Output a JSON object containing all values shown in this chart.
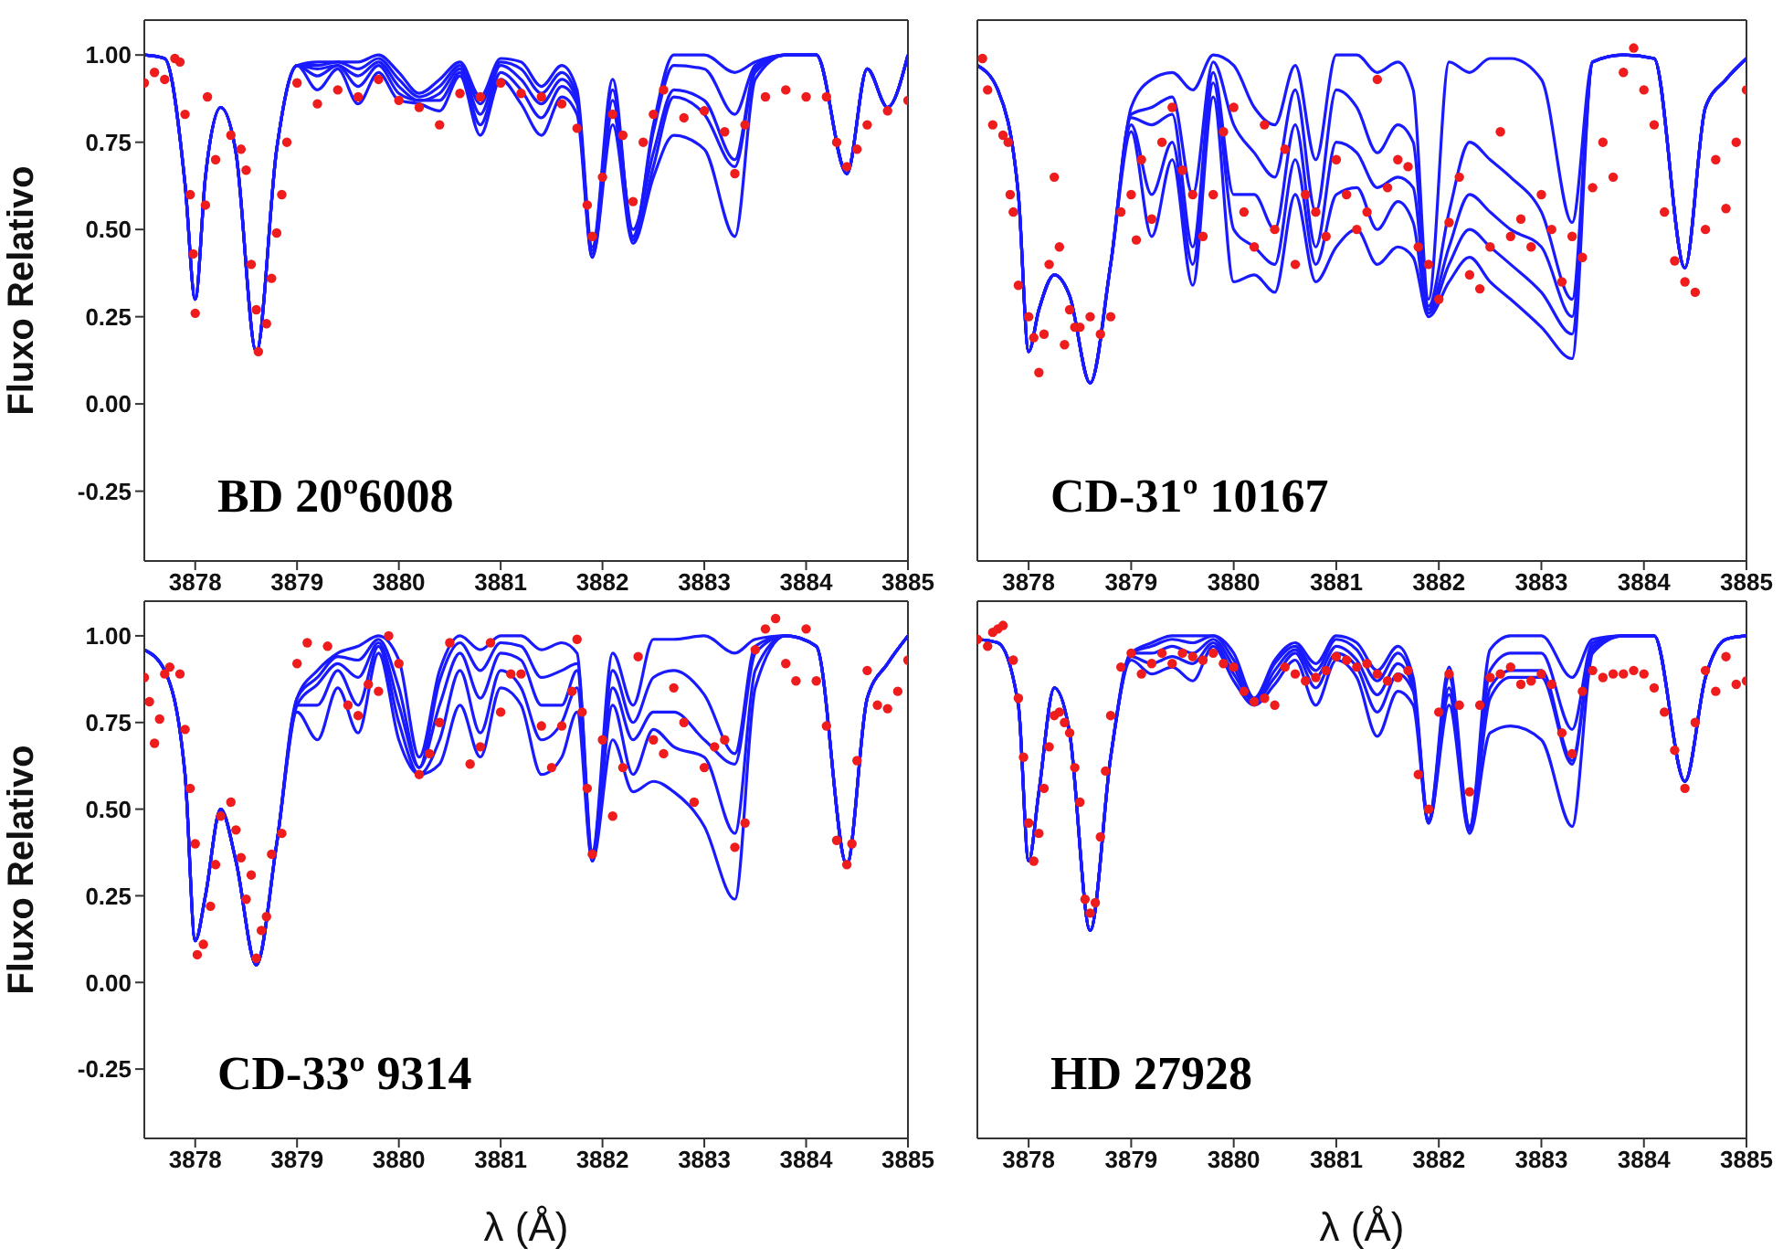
{
  "chart_data": [
    {
      "type": "line",
      "ylabel": "Fluxo Relativo",
      "annotations": [
        "BD 20º6008"
      ],
      "marker": "none",
      "xlim": [
        3877.5,
        3885
      ],
      "xticks": [
        3878,
        3879,
        3880,
        3881,
        3882,
        3883,
        3884,
        3885
      ],
      "ylim": [
        -0.45,
        1.1
      ],
      "yticks": [
        {
          "value": -0.25,
          "label": "-0.25"
        },
        {
          "value": 0,
          "label": "0.00"
        },
        {
          "value": 0.25,
          "label": "0.25"
        },
        {
          "value": 0.5,
          "label": "0.50"
        },
        {
          "value": 0.75,
          "label": "0.75"
        },
        {
          "value": 1,
          "label": "1.00"
        }
      ],
      "x": [
        3877.5,
        3877.7,
        3877.9,
        3878.0,
        3878.1,
        3878.25,
        3878.4,
        3878.6,
        3878.8,
        3879.0,
        3879.2,
        3879.4,
        3879.6,
        3879.8,
        3880.0,
        3880.2,
        3880.4,
        3880.6,
        3880.8,
        3881.0,
        3881.2,
        3881.4,
        3881.6,
        3881.75,
        3881.9,
        3882.1,
        3882.3,
        3882.5,
        3882.7,
        3883.0,
        3883.3,
        3883.5,
        3883.8,
        3884.1,
        3884.4,
        3884.6,
        3884.8,
        3885.0
      ],
      "series": [
        {
          "color": "#1a1aff",
          "values": [
            1.0,
            0.99,
            0.63,
            0.3,
            0.65,
            0.85,
            0.72,
            0.15,
            0.73,
            0.97,
            0.98,
            0.98,
            0.98,
            1.0,
            0.95,
            0.89,
            0.93,
            0.98,
            0.88,
            0.99,
            0.98,
            0.91,
            0.97,
            0.9,
            0.45,
            0.93,
            0.47,
            0.8,
            1.0,
            1.0,
            0.95,
            0.98,
            1.0,
            1.0,
            0.66,
            0.96,
            0.85,
            1.0
          ]
        },
        {
          "color": "#1a1aff",
          "values": [
            1.0,
            0.99,
            0.63,
            0.3,
            0.65,
            0.85,
            0.72,
            0.15,
            0.73,
            0.97,
            0.97,
            0.98,
            0.96,
            0.99,
            0.93,
            0.88,
            0.91,
            0.97,
            0.86,
            0.98,
            0.96,
            0.89,
            0.95,
            0.88,
            0.44,
            0.9,
            0.48,
            0.78,
            0.97,
            0.96,
            0.83,
            0.97,
            1.0,
            1.0,
            0.66,
            0.96,
            0.85,
            1.0
          ]
        },
        {
          "color": "#1a1aff",
          "values": [
            1.0,
            0.99,
            0.63,
            0.3,
            0.65,
            0.85,
            0.72,
            0.15,
            0.73,
            0.97,
            0.96,
            0.97,
            0.94,
            0.98,
            0.91,
            0.87,
            0.89,
            0.96,
            0.83,
            0.97,
            0.93,
            0.86,
            0.93,
            0.87,
            0.43,
            0.87,
            0.5,
            0.72,
            0.9,
            0.87,
            0.7,
            0.96,
            1.0,
            1.0,
            0.66,
            0.96,
            0.85,
            1.0
          ]
        },
        {
          "color": "#1a1aff",
          "values": [
            1.0,
            0.99,
            0.63,
            0.3,
            0.65,
            0.85,
            0.72,
            0.15,
            0.73,
            0.97,
            0.94,
            0.97,
            0.91,
            0.97,
            0.89,
            0.87,
            0.87,
            0.95,
            0.8,
            0.95,
            0.9,
            0.82,
            0.91,
            0.86,
            0.42,
            0.84,
            0.47,
            0.68,
            0.88,
            0.83,
            0.68,
            0.95,
            1.0,
            1.0,
            0.66,
            0.96,
            0.85,
            1.0
          ]
        },
        {
          "color": "#1a1aff",
          "values": [
            1.0,
            0.99,
            0.63,
            0.3,
            0.65,
            0.85,
            0.72,
            0.15,
            0.73,
            0.97,
            0.9,
            0.96,
            0.86,
            0.95,
            0.87,
            0.86,
            0.84,
            0.94,
            0.77,
            0.93,
            0.86,
            0.77,
            0.88,
            0.83,
            0.42,
            0.8,
            0.46,
            0.65,
            0.77,
            0.73,
            0.48,
            0.93,
            1.0,
            1.0,
            0.66,
            0.96,
            0.85,
            1.0
          ]
        },
        {
          "type": "scatter",
          "marker": "circle",
          "color": "#ee1c1c",
          "x": [
            3877.5,
            3877.6,
            3877.7,
            3877.8,
            3877.85,
            3877.9,
            3877.95,
            3877.98,
            3878.0,
            3878.1,
            3878.12,
            3878.2,
            3878.35,
            3878.45,
            3878.5,
            3878.55,
            3878.6,
            3878.62,
            3878.7,
            3878.75,
            3878.8,
            3878.85,
            3878.9,
            3879.0,
            3879.2,
            3879.4,
            3879.6,
            3879.8,
            3880.0,
            3880.2,
            3880.4,
            3880.6,
            3880.8,
            3881.0,
            3881.2,
            3881.4,
            3881.6,
            3881.75,
            3881.85,
            3881.9,
            3882.0,
            3882.1,
            3882.2,
            3882.3,
            3882.4,
            3882.5,
            3882.6,
            3882.8,
            3883.0,
            3883.2,
            3883.3,
            3883.4,
            3883.6,
            3883.8,
            3884.0,
            3884.2,
            3884.3,
            3884.4,
            3884.5,
            3884.6,
            3884.8,
            3885.0
          ],
          "values": [
            0.92,
            0.95,
            0.93,
            0.99,
            0.98,
            0.83,
            0.6,
            0.43,
            0.26,
            0.57,
            0.88,
            0.7,
            0.77,
            0.73,
            0.67,
            0.4,
            0.27,
            0.15,
            0.23,
            0.36,
            0.49,
            0.6,
            0.75,
            0.92,
            0.86,
            0.9,
            0.88,
            0.93,
            0.87,
            0.85,
            0.8,
            0.89,
            0.88,
            0.92,
            0.89,
            0.88,
            0.86,
            0.79,
            0.57,
            0.48,
            0.65,
            0.83,
            0.77,
            0.58,
            0.75,
            0.83,
            0.9,
            0.82,
            0.84,
            0.78,
            0.66,
            0.8,
            0.88,
            0.9,
            0.88,
            0.88,
            0.75,
            0.68,
            0.73,
            0.8,
            0.84,
            0.87
          ]
        }
      ]
    },
    {
      "type": "line",
      "annotations": [
        "CD-31º 10167"
      ],
      "tick_labels": "x",
      "marker": "none",
      "xlim": [
        3877.5,
        3885
      ],
      "xticks": [
        3878,
        3879,
        3880,
        3881,
        3882,
        3883,
        3884,
        3885
      ],
      "ylim": [
        -0.45,
        1.1
      ],
      "yticks": [
        {
          "value": -0.25,
          "label": null
        },
        {
          "value": 0,
          "label": null
        },
        {
          "value": 0.25,
          "label": null
        },
        {
          "value": 0.5,
          "label": null
        },
        {
          "value": 0.75,
          "label": null
        },
        {
          "value": 1,
          "label": null
        }
      ],
      "x": [
        3877.5,
        3877.7,
        3877.9,
        3878.0,
        3878.1,
        3878.25,
        3878.4,
        3878.6,
        3878.8,
        3879.0,
        3879.2,
        3879.4,
        3879.6,
        3879.8,
        3880.0,
        3880.2,
        3880.4,
        3880.6,
        3880.8,
        3881.0,
        3881.2,
        3881.4,
        3881.6,
        3881.75,
        3881.9,
        3882.1,
        3882.3,
        3882.5,
        3882.7,
        3883.0,
        3883.3,
        3883.5,
        3883.8,
        3884.1,
        3884.4,
        3884.6,
        3884.8,
        3885.0
      ],
      "series": [
        {
          "color": "#1a1aff",
          "values": [
            0.97,
            0.9,
            0.6,
            0.15,
            0.27,
            0.37,
            0.31,
            0.06,
            0.4,
            0.85,
            0.93,
            0.95,
            0.9,
            1.0,
            0.97,
            0.85,
            0.8,
            0.97,
            0.7,
            1.0,
            1.0,
            0.95,
            0.98,
            0.9,
            0.3,
            0.98,
            0.95,
            0.99,
            0.99,
            0.93,
            0.52,
            0.98,
            1.0,
            0.99,
            0.39,
            0.85,
            0.93,
            0.99
          ]
        },
        {
          "color": "#1a1aff",
          "values": [
            0.97,
            0.9,
            0.6,
            0.15,
            0.27,
            0.37,
            0.31,
            0.06,
            0.4,
            0.83,
            0.85,
            0.88,
            0.6,
            0.98,
            0.8,
            0.72,
            0.65,
            0.9,
            0.55,
            0.9,
            0.85,
            0.72,
            0.8,
            0.75,
            0.28,
            0.55,
            0.75,
            0.7,
            0.65,
            0.55,
            0.3,
            0.98,
            1.0,
            0.99,
            0.39,
            0.85,
            0.93,
            0.99
          ]
        },
        {
          "color": "#1a1aff",
          "values": [
            0.97,
            0.9,
            0.6,
            0.15,
            0.27,
            0.37,
            0.31,
            0.06,
            0.4,
            0.82,
            0.8,
            0.83,
            0.45,
            0.95,
            0.6,
            0.6,
            0.5,
            0.8,
            0.45,
            0.75,
            0.72,
            0.62,
            0.65,
            0.62,
            0.27,
            0.45,
            0.6,
            0.55,
            0.5,
            0.45,
            0.25,
            0.98,
            1.0,
            0.99,
            0.39,
            0.85,
            0.93,
            0.99
          ]
        },
        {
          "color": "#1a1aff",
          "values": [
            0.97,
            0.9,
            0.6,
            0.15,
            0.27,
            0.37,
            0.31,
            0.06,
            0.4,
            0.8,
            0.6,
            0.75,
            0.4,
            0.92,
            0.5,
            0.45,
            0.4,
            0.7,
            0.4,
            0.6,
            0.62,
            0.5,
            0.58,
            0.52,
            0.26,
            0.4,
            0.5,
            0.45,
            0.4,
            0.32,
            0.2,
            0.98,
            1.0,
            0.99,
            0.39,
            0.85,
            0.93,
            0.99
          ]
        },
        {
          "color": "#1a1aff",
          "values": [
            0.97,
            0.9,
            0.6,
            0.15,
            0.27,
            0.37,
            0.31,
            0.06,
            0.4,
            0.78,
            0.48,
            0.7,
            0.34,
            0.88,
            0.35,
            0.37,
            0.32,
            0.6,
            0.35,
            0.45,
            0.5,
            0.4,
            0.45,
            0.42,
            0.25,
            0.35,
            0.42,
            0.35,
            0.3,
            0.22,
            0.13,
            0.98,
            1.0,
            0.99,
            0.39,
            0.85,
            0.93,
            0.99
          ]
        },
        {
          "type": "scatter",
          "marker": "circle",
          "color": "#ee1c1c",
          "x": [
            3877.55,
            3877.6,
            3877.65,
            3877.75,
            3877.8,
            3877.82,
            3877.85,
            3877.9,
            3878.0,
            3878.05,
            3878.1,
            3878.15,
            3878.2,
            3878.25,
            3878.3,
            3878.35,
            3878.4,
            3878.45,
            3878.5,
            3878.6,
            3878.7,
            3878.8,
            3878.9,
            3879.0,
            3879.05,
            3879.1,
            3879.2,
            3879.3,
            3879.4,
            3879.5,
            3879.6,
            3879.7,
            3879.8,
            3879.9,
            3880.0,
            3880.1,
            3880.2,
            3880.3,
            3880.4,
            3880.5,
            3880.6,
            3880.7,
            3880.8,
            3880.9,
            3881.0,
            3881.1,
            3881.2,
            3881.3,
            3881.4,
            3881.5,
            3881.6,
            3881.7,
            3881.8,
            3881.9,
            3882.0,
            3882.1,
            3882.2,
            3882.3,
            3882.4,
            3882.5,
            3882.6,
            3882.7,
            3882.8,
            3882.9,
            3883.0,
            3883.1,
            3883.2,
            3883.3,
            3883.4,
            3883.5,
            3883.6,
            3883.7,
            3883.8,
            3883.9,
            3884.0,
            3884.1,
            3884.2,
            3884.3,
            3884.4,
            3884.5,
            3884.6,
            3884.7,
            3884.8,
            3884.9,
            3885.0
          ],
          "values": [
            0.99,
            0.9,
            0.8,
            0.77,
            0.75,
            0.6,
            0.55,
            0.34,
            0.25,
            0.19,
            0.09,
            0.2,
            0.4,
            0.65,
            0.45,
            0.17,
            0.27,
            0.22,
            0.22,
            0.25,
            0.2,
            0.25,
            0.55,
            0.6,
            0.47,
            0.7,
            0.53,
            0.75,
            0.85,
            0.67,
            0.6,
            0.48,
            0.6,
            0.78,
            0.85,
            0.55,
            0.45,
            0.8,
            0.5,
            0.73,
            0.4,
            0.6,
            0.55,
            0.48,
            0.7,
            0.6,
            0.5,
            0.55,
            0.93,
            0.62,
            0.7,
            0.68,
            0.45,
            0.4,
            0.3,
            0.52,
            0.65,
            0.37,
            0.33,
            0.45,
            0.78,
            0.48,
            0.53,
            0.45,
            0.6,
            0.5,
            0.35,
            0.48,
            0.42,
            0.62,
            0.75,
            0.65,
            0.95,
            1.02,
            0.9,
            0.8,
            0.55,
            0.41,
            0.35,
            0.32,
            0.5,
            0.7,
            0.56,
            0.75,
            0.9
          ]
        }
      ]
    },
    {
      "type": "line",
      "ylabel": "Fluxo Relativo",
      "xlabel": "λ (Å)",
      "annotations": [
        "CD-33º 9314"
      ],
      "marker": "none",
      "xlim": [
        3877.5,
        3885
      ],
      "xticks": [
        3878,
        3879,
        3880,
        3881,
        3882,
        3883,
        3884,
        3885
      ],
      "ylim": [
        -0.45,
        1.1
      ],
      "yticks": [
        {
          "value": -0.25,
          "label": "-0.25"
        },
        {
          "value": 0,
          "label": "0.00"
        },
        {
          "value": 0.25,
          "label": "0.25"
        },
        {
          "value": 0.5,
          "label": "0.50"
        },
        {
          "value": 0.75,
          "label": "0.75"
        },
        {
          "value": 1,
          "label": "1.00"
        }
      ],
      "x": [
        3877.5,
        3877.7,
        3877.9,
        3878.0,
        3878.1,
        3878.25,
        3878.4,
        3878.6,
        3878.8,
        3879.0,
        3879.2,
        3879.4,
        3879.6,
        3879.8,
        3880.0,
        3880.2,
        3880.4,
        3880.6,
        3880.8,
        3881.0,
        3881.2,
        3881.4,
        3881.6,
        3881.75,
        3881.9,
        3882.1,
        3882.3,
        3882.5,
        3882.7,
        3883.0,
        3883.3,
        3883.5,
        3883.8,
        3884.1,
        3884.4,
        3884.6,
        3884.8,
        3885.0
      ],
      "series": [
        {
          "color": "#1a1aff",
          "values": [
            0.96,
            0.9,
            0.6,
            0.12,
            0.25,
            0.5,
            0.35,
            0.05,
            0.4,
            0.82,
            0.9,
            0.95,
            0.97,
            1.0,
            0.93,
            0.65,
            0.9,
            1.0,
            0.96,
            1.0,
            1.0,
            0.96,
            0.98,
            0.95,
            0.38,
            0.95,
            0.8,
            0.99,
            0.99,
            1.0,
            0.95,
            0.99,
            1.0,
            0.97,
            0.34,
            0.82,
            0.92,
            1.0
          ]
        },
        {
          "color": "#1a1aff",
          "values": [
            0.96,
            0.9,
            0.6,
            0.12,
            0.25,
            0.5,
            0.35,
            0.05,
            0.4,
            0.82,
            0.88,
            0.94,
            0.93,
            0.99,
            0.85,
            0.62,
            0.87,
            0.98,
            0.9,
            0.98,
            0.97,
            0.88,
            0.9,
            0.92,
            0.37,
            0.9,
            0.75,
            0.88,
            0.9,
            0.83,
            0.66,
            0.97,
            1.0,
            0.97,
            0.34,
            0.82,
            0.92,
            1.0
          ]
        },
        {
          "color": "#1a1aff",
          "values": [
            0.96,
            0.9,
            0.6,
            0.12,
            0.25,
            0.5,
            0.35,
            0.05,
            0.4,
            0.8,
            0.86,
            0.92,
            0.88,
            0.98,
            0.8,
            0.62,
            0.8,
            0.95,
            0.82,
            0.95,
            0.93,
            0.8,
            0.8,
            0.9,
            0.36,
            0.85,
            0.7,
            0.78,
            0.78,
            0.7,
            0.63,
            0.95,
            1.0,
            0.97,
            0.34,
            0.82,
            0.92,
            1.0
          ]
        },
        {
          "color": "#1a1aff",
          "values": [
            0.96,
            0.9,
            0.6,
            0.12,
            0.25,
            0.5,
            0.35,
            0.05,
            0.4,
            0.8,
            0.8,
            0.9,
            0.8,
            0.97,
            0.75,
            0.6,
            0.7,
            0.9,
            0.72,
            0.9,
            0.85,
            0.7,
            0.75,
            0.85,
            0.35,
            0.8,
            0.6,
            0.73,
            0.68,
            0.65,
            0.43,
            0.9,
            1.0,
            0.97,
            0.34,
            0.82,
            0.92,
            1.0
          ]
        },
        {
          "color": "#1a1aff",
          "values": [
            0.96,
            0.9,
            0.6,
            0.12,
            0.25,
            0.5,
            0.35,
            0.05,
            0.4,
            0.78,
            0.7,
            0.85,
            0.72,
            0.95,
            0.7,
            0.6,
            0.63,
            0.8,
            0.65,
            0.85,
            0.8,
            0.6,
            0.65,
            0.78,
            0.35,
            0.7,
            0.55,
            0.58,
            0.55,
            0.45,
            0.24,
            0.85,
            1.0,
            0.97,
            0.34,
            0.82,
            0.92,
            1.0
          ]
        },
        {
          "type": "scatter",
          "marker": "circle",
          "color": "#ee1c1c",
          "x": [
            3877.5,
            3877.55,
            3877.6,
            3877.65,
            3877.7,
            3877.75,
            3877.85,
            3877.9,
            3877.95,
            3878.0,
            3878.02,
            3878.08,
            3878.15,
            3878.2,
            3878.25,
            3878.35,
            3878.4,
            3878.45,
            3878.5,
            3878.55,
            3878.6,
            3878.65,
            3878.7,
            3878.75,
            3878.85,
            3879.0,
            3879.1,
            3879.3,
            3879.5,
            3879.6,
            3879.7,
            3879.8,
            3879.9,
            3880.0,
            3880.2,
            3880.3,
            3880.4,
            3880.5,
            3880.7,
            3880.8,
            3880.9,
            3881.0,
            3881.1,
            3881.2,
            3881.4,
            3881.5,
            3881.6,
            3881.7,
            3881.75,
            3881.8,
            3881.85,
            3881.9,
            3882.0,
            3882.1,
            3882.2,
            3882.35,
            3882.5,
            3882.6,
            3882.7,
            3882.8,
            3882.9,
            3883.0,
            3883.1,
            3883.2,
            3883.3,
            3883.4,
            3883.5,
            3883.6,
            3883.7,
            3883.8,
            3883.9,
            3884.0,
            3884.1,
            3884.2,
            3884.3,
            3884.4,
            3884.45,
            3884.5,
            3884.6,
            3884.7,
            3884.8,
            3884.9,
            3885.0
          ],
          "values": [
            0.88,
            0.81,
            0.69,
            0.76,
            0.89,
            0.91,
            0.89,
            0.73,
            0.56,
            0.4,
            0.08,
            0.11,
            0.22,
            0.34,
            0.48,
            0.52,
            0.44,
            0.36,
            0.24,
            0.31,
            0.07,
            0.15,
            0.19,
            0.37,
            0.43,
            0.92,
            0.98,
            0.97,
            0.8,
            0.77,
            0.86,
            0.84,
            1.0,
            0.92,
            0.6,
            0.66,
            0.75,
            0.98,
            0.63,
            0.68,
            0.98,
            0.78,
            0.89,
            0.89,
            0.74,
            0.62,
            0.74,
            0.84,
            0.99,
            0.78,
            0.56,
            0.37,
            0.7,
            0.48,
            0.62,
            0.94,
            0.7,
            0.66,
            0.85,
            0.75,
            0.52,
            0.62,
            0.68,
            0.7,
            0.39,
            0.46,
            0.96,
            1.02,
            1.05,
            0.92,
            0.87,
            1.02,
            0.87,
            0.74,
            0.41,
            0.34,
            0.4,
            0.64,
            0.9,
            0.8,
            0.79,
            0.84,
            0.93
          ]
        }
      ]
    },
    {
      "type": "line",
      "xlabel": "λ (Å)",
      "annotations": [
        "HD 27928"
      ],
      "tick_labels": "x",
      "marker": "none",
      "xlim": [
        3877.5,
        3885
      ],
      "xticks": [
        3878,
        3879,
        3880,
        3881,
        3882,
        3883,
        3884,
        3885
      ],
      "ylim": [
        -0.45,
        1.1
      ],
      "yticks": [
        {
          "value": -0.25,
          "label": null
        },
        {
          "value": 0,
          "label": null
        },
        {
          "value": 0.25,
          "label": null
        },
        {
          "value": 0.5,
          "label": null
        },
        {
          "value": 0.75,
          "label": null
        },
        {
          "value": 1,
          "label": null
        }
      ],
      "x": [
        3877.5,
        3877.7,
        3877.9,
        3878.0,
        3878.1,
        3878.25,
        3878.4,
        3878.6,
        3878.8,
        3879.0,
        3879.2,
        3879.4,
        3879.6,
        3879.8,
        3880.0,
        3880.2,
        3880.4,
        3880.6,
        3880.8,
        3881.0,
        3881.2,
        3881.4,
        3881.6,
        3881.75,
        3881.9,
        3882.1,
        3882.3,
        3882.5,
        3882.7,
        3883.0,
        3883.3,
        3883.5,
        3883.8,
        3884.1,
        3884.4,
        3884.6,
        3884.8,
        3885.0
      ],
      "series": [
        {
          "color": "#1a1aff",
          "values": [
            0.99,
            0.98,
            0.8,
            0.35,
            0.55,
            0.85,
            0.72,
            0.15,
            0.65,
            0.95,
            0.98,
            1.0,
            1.0,
            1.0,
            0.95,
            0.82,
            0.93,
            0.98,
            0.92,
            1.0,
            0.98,
            0.9,
            0.97,
            0.88,
            0.47,
            0.91,
            0.45,
            0.96,
            1.0,
            1.0,
            0.88,
            0.99,
            1.0,
            1.0,
            0.58,
            0.88,
            0.99,
            1.0
          ]
        },
        {
          "color": "#1a1aff",
          "values": [
            0.99,
            0.98,
            0.8,
            0.35,
            0.55,
            0.85,
            0.72,
            0.15,
            0.65,
            0.95,
            0.97,
            0.99,
            0.98,
            1.0,
            0.93,
            0.82,
            0.92,
            0.97,
            0.9,
            0.99,
            0.96,
            0.87,
            0.95,
            0.86,
            0.47,
            0.88,
            0.45,
            0.9,
            0.95,
            0.95,
            0.73,
            0.98,
            1.0,
            1.0,
            0.58,
            0.88,
            0.99,
            1.0
          ]
        },
        {
          "color": "#1a1aff",
          "values": [
            0.99,
            0.98,
            0.8,
            0.35,
            0.55,
            0.85,
            0.72,
            0.15,
            0.65,
            0.95,
            0.95,
            0.97,
            0.95,
            0.99,
            0.91,
            0.81,
            0.9,
            0.96,
            0.88,
            0.97,
            0.93,
            0.83,
            0.92,
            0.85,
            0.46,
            0.85,
            0.44,
            0.85,
            0.9,
            0.9,
            0.64,
            0.97,
            1.0,
            1.0,
            0.58,
            0.88,
            0.99,
            1.0
          ]
        },
        {
          "color": "#1a1aff",
          "values": [
            0.99,
            0.98,
            0.8,
            0.35,
            0.55,
            0.85,
            0.72,
            0.15,
            0.65,
            0.94,
            0.92,
            0.94,
            0.92,
            0.98,
            0.89,
            0.81,
            0.88,
            0.95,
            0.85,
            0.95,
            0.91,
            0.78,
            0.89,
            0.84,
            0.46,
            0.83,
            0.44,
            0.82,
            0.88,
            0.88,
            0.63,
            0.96,
            1.0,
            1.0,
            0.58,
            0.88,
            0.99,
            1.0
          ]
        },
        {
          "color": "#1a1aff",
          "values": [
            0.99,
            0.98,
            0.8,
            0.35,
            0.55,
            0.85,
            0.72,
            0.15,
            0.65,
            0.93,
            0.89,
            0.91,
            0.87,
            0.97,
            0.87,
            0.8,
            0.86,
            0.93,
            0.8,
            0.93,
            0.88,
            0.71,
            0.84,
            0.8,
            0.46,
            0.8,
            0.43,
            0.72,
            0.74,
            0.7,
            0.45,
            0.95,
            1.0,
            1.0,
            0.58,
            0.88,
            0.99,
            1.0
          ]
        },
        {
          "type": "scatter",
          "marker": "circle",
          "color": "#ee1c1c",
          "x": [
            3877.5,
            3877.6,
            3877.65,
            3877.7,
            3877.75,
            3877.85,
            3877.9,
            3877.95,
            3878.0,
            3878.05,
            3878.1,
            3878.15,
            3878.2,
            3878.25,
            3878.3,
            3878.35,
            3878.4,
            3878.45,
            3878.5,
            3878.55,
            3878.6,
            3878.65,
            3878.7,
            3878.75,
            3878.8,
            3878.9,
            3879.0,
            3879.1,
            3879.2,
            3879.3,
            3879.4,
            3879.5,
            3879.6,
            3879.7,
            3879.8,
            3879.9,
            3880.0,
            3880.1,
            3880.2,
            3880.3,
            3880.4,
            3880.5,
            3880.6,
            3880.7,
            3880.8,
            3880.9,
            3881.0,
            3881.1,
            3881.2,
            3881.3,
            3881.4,
            3881.5,
            3881.6,
            3881.7,
            3881.8,
            3881.9,
            3882.0,
            3882.1,
            3882.2,
            3882.3,
            3882.4,
            3882.5,
            3882.6,
            3882.7,
            3882.8,
            3882.9,
            3883.0,
            3883.1,
            3883.2,
            3883.3,
            3883.4,
            3883.5,
            3883.6,
            3883.7,
            3883.8,
            3883.9,
            3884.0,
            3884.1,
            3884.2,
            3884.3,
            3884.4,
            3884.5,
            3884.6,
            3884.7,
            3884.8,
            3884.9,
            3885.0
          ],
          "values": [
            0.99,
            0.97,
            1.01,
            1.02,
            1.03,
            0.93,
            0.82,
            0.65,
            0.46,
            0.35,
            0.43,
            0.56,
            0.68,
            0.77,
            0.78,
            0.75,
            0.72,
            0.62,
            0.52,
            0.24,
            0.2,
            0.23,
            0.42,
            0.61,
            0.77,
            0.91,
            0.95,
            0.89,
            0.92,
            0.95,
            0.92,
            0.95,
            0.94,
            0.93,
            0.95,
            0.92,
            0.91,
            0.84,
            0.81,
            0.82,
            0.8,
            0.91,
            0.89,
            0.87,
            0.88,
            0.9,
            0.94,
            0.93,
            0.91,
            0.92,
            0.89,
            0.87,
            0.88,
            0.9,
            0.6,
            0.5,
            0.78,
            0.89,
            0.8,
            0.55,
            0.8,
            0.88,
            0.89,
            0.91,
            0.86,
            0.87,
            0.89,
            0.86,
            0.72,
            0.66,
            0.84,
            0.9,
            0.88,
            0.89,
            0.89,
            0.9,
            0.89,
            0.85,
            0.78,
            0.67,
            0.56,
            0.75,
            0.9,
            0.84,
            0.94,
            0.86,
            0.87
          ]
        }
      ]
    }
  ]
}
